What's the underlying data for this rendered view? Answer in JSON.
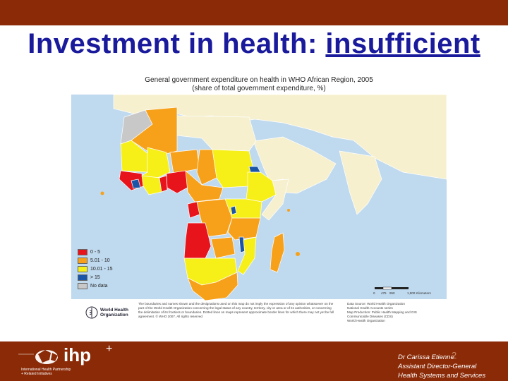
{
  "slide": {
    "title_part1": "Investment in health: ",
    "title_part2": "insufficient",
    "slide_number": "2"
  },
  "map": {
    "title_line1": "General government expenditure on health in WHO African Region, 2005",
    "title_line2": "(share of total government expenditure, %)",
    "legend": [
      {
        "label": "0 - 5",
        "color": "#e8141c"
      },
      {
        "label": "5.01 - 10",
        "color": "#f7a11a"
      },
      {
        "label": "10.01 - 15",
        "color": "#f7ef18"
      },
      {
        "label": "> 15",
        "color": "#1b55a8"
      },
      {
        "label": "No data",
        "color": "#c8c8c8"
      }
    ],
    "disclaimer": "The boundaries and names shown and the designations used on this map do not imply the expression of any opinion whatsoever on the part of the World Health Organization concerning the legal status of any country, territory, city or area or of its authorities, or concerning the delimitation of its frontiers or boundaries. Dotted lines on maps represent approximate border lines for which there may not yet be full agreement. © WHO 2007. All rights reserved",
    "source": "Data Source: World Health Organization\nNational Health Accounts series\nMap Production: Public Health Mapping and GIS\nCommunicable Diseases (CDS)\nWorld Health Organization",
    "who_logo_line1": "World Health",
    "who_logo_line2": "Organization",
    "scale_labels": [
      "0",
      "475",
      "950",
      "1,900 Kilometers"
    ],
    "colors": {
      "ocean": "#bfd9ee",
      "other_land": "#f6f0cf",
      "border": "#ffffff"
    }
  },
  "footer": {
    "logo_text": "ihp",
    "logo_plus": "+",
    "logo_subtitle": "International Health Partnership\n+ Related Initiatives",
    "speaker_name": "Dr Carissa Etienne",
    "speaker_title": "Assistant Director-General",
    "speaker_dept": "Health Systems and Services"
  },
  "colors": {
    "banner": "#8b2a07",
    "title": "#1a1a9c"
  }
}
